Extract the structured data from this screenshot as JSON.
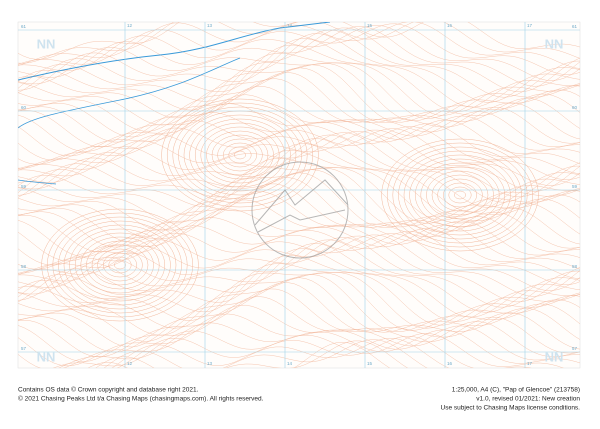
{
  "map": {
    "corner_labels": [
      "NN",
      "NN",
      "NN",
      "NN"
    ],
    "easting_labels": [
      "12",
      "13",
      "14",
      "15",
      "16",
      "17"
    ],
    "northing_labels": [
      "61",
      "60",
      "59",
      "58",
      "57"
    ]
  },
  "footer": {
    "left": [
      "Contains OS data © Crown copyright and database right 2021.",
      "© 2021 Chasing Peaks Ltd t/a Chasing Maps (chasingmaps.com). All rights reserved."
    ],
    "right": [
      "1:25,000, A4 (C), \"Pap of Glencoe\" (213758)",
      "v1.0, revised 01/2021: New creation",
      "Use subject to Chasing Maps license conditions."
    ]
  }
}
